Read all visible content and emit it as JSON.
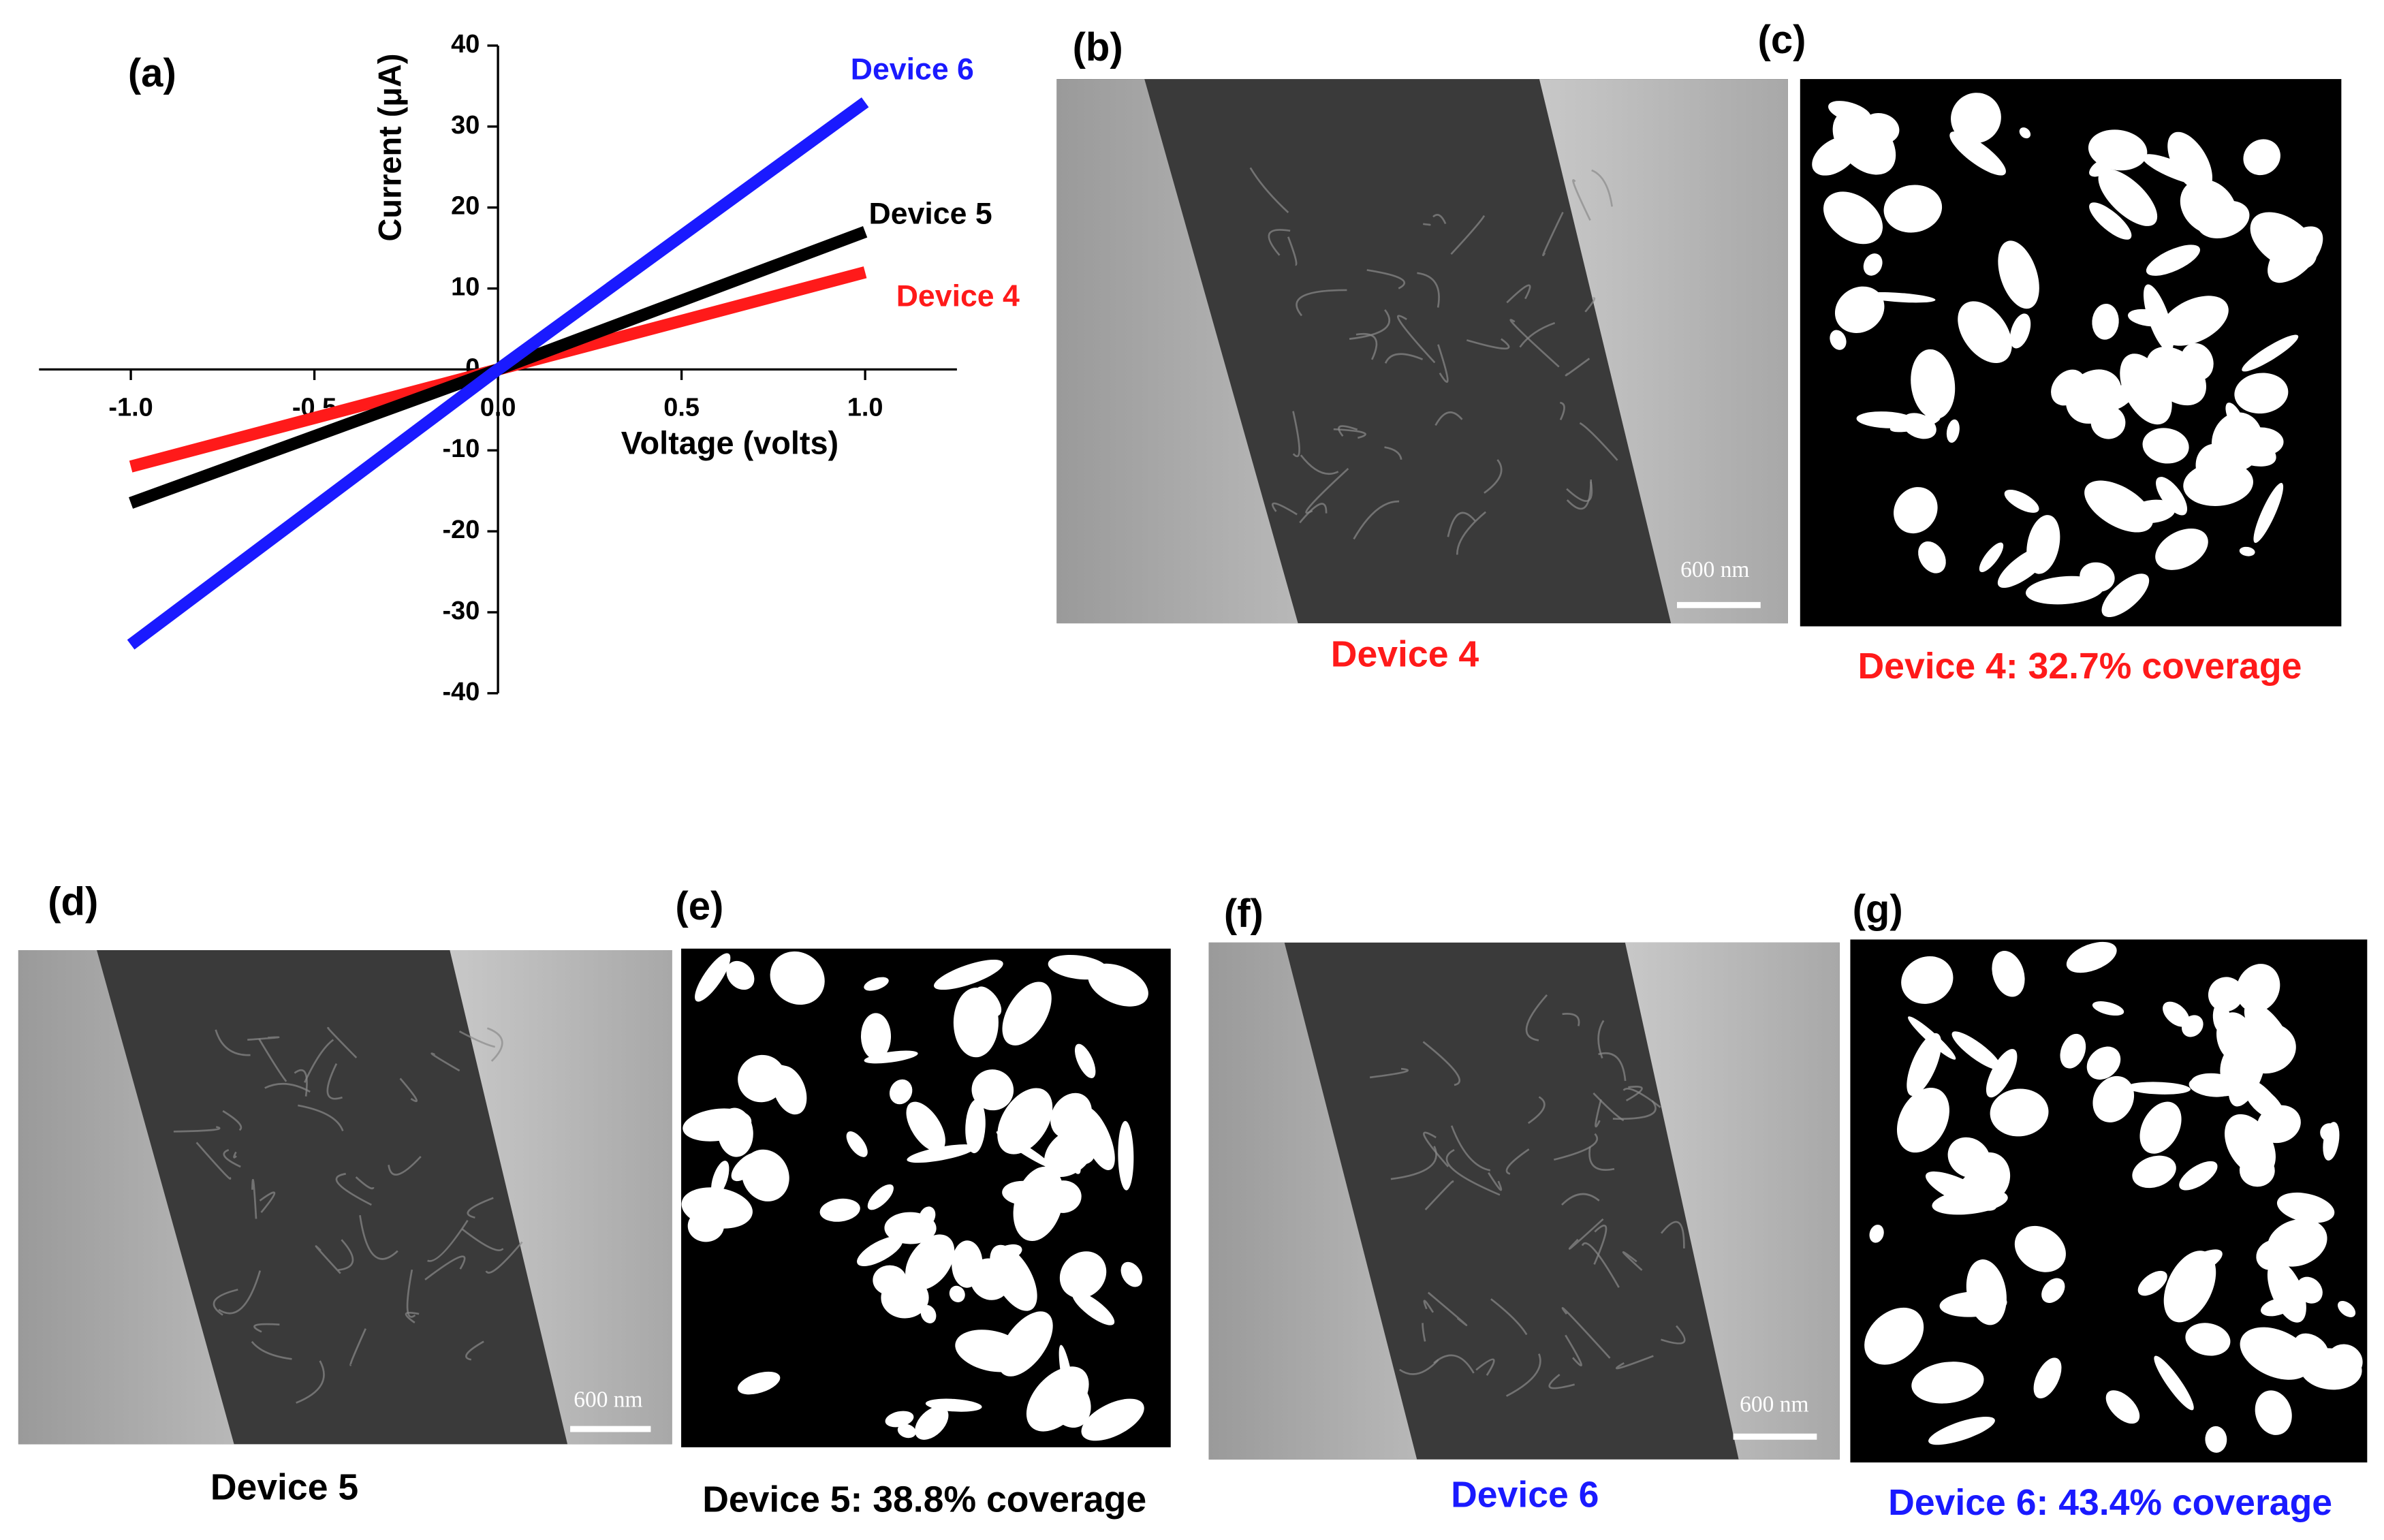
{
  "chart_data": {
    "type": "line",
    "label": "(a)",
    "x_label": "Voltage (volts)",
    "y_label": "Current (μA)",
    "x": [
      -1.0,
      0.0,
      1.0
    ],
    "series": [
      {
        "name": "Device 6",
        "color": "#1a1aff",
        "values": [
          -34,
          0,
          33
        ]
      },
      {
        "name": "Device 5",
        "color": "#000000",
        "values": [
          -16.5,
          0,
          17
        ]
      },
      {
        "name": "Device 4",
        "color": "#ff1a1a",
        "values": [
          -12,
          0,
          12
        ]
      }
    ],
    "xlim": [
      -1.25,
      1.25
    ],
    "ylim": [
      -40,
      40
    ],
    "xticks": [
      {
        "value": -1.0,
        "label": "-1.0"
      },
      {
        "value": -0.5,
        "label": "-0.5"
      },
      {
        "value": 0.0,
        "label": "0.0"
      },
      {
        "value": 0.5,
        "label": "0.5"
      },
      {
        "value": 1.0,
        "label": "1.0"
      }
    ],
    "yticks": [
      40,
      30,
      20,
      10,
      0,
      -10,
      -20,
      -30,
      -40
    ]
  },
  "panels": [
    {
      "label": "(b)",
      "kind": "sem",
      "caption": "Device 4",
      "caption_color": "#ff1a1a",
      "scale_bar": "600 nm"
    },
    {
      "label": "(c)",
      "kind": "binary",
      "caption": "Device 4: 32.7% coverage",
      "caption_color": "#ff1a1a"
    },
    {
      "label": "(d)",
      "kind": "sem",
      "caption": "Device 5",
      "caption_color": "#000000",
      "scale_bar": "600 nm"
    },
    {
      "label": "(e)",
      "kind": "binary",
      "caption": "Device 5: 38.8% coverage",
      "caption_color": "#000000"
    },
    {
      "label": "(f)",
      "kind": "sem",
      "caption": "Device 6",
      "caption_color": "#1a1aff",
      "scale_bar": "600 nm"
    },
    {
      "label": "(g)",
      "kind": "binary",
      "caption": "Device 6: 43.4% coverage",
      "caption_color": "#1a1aff"
    }
  ]
}
